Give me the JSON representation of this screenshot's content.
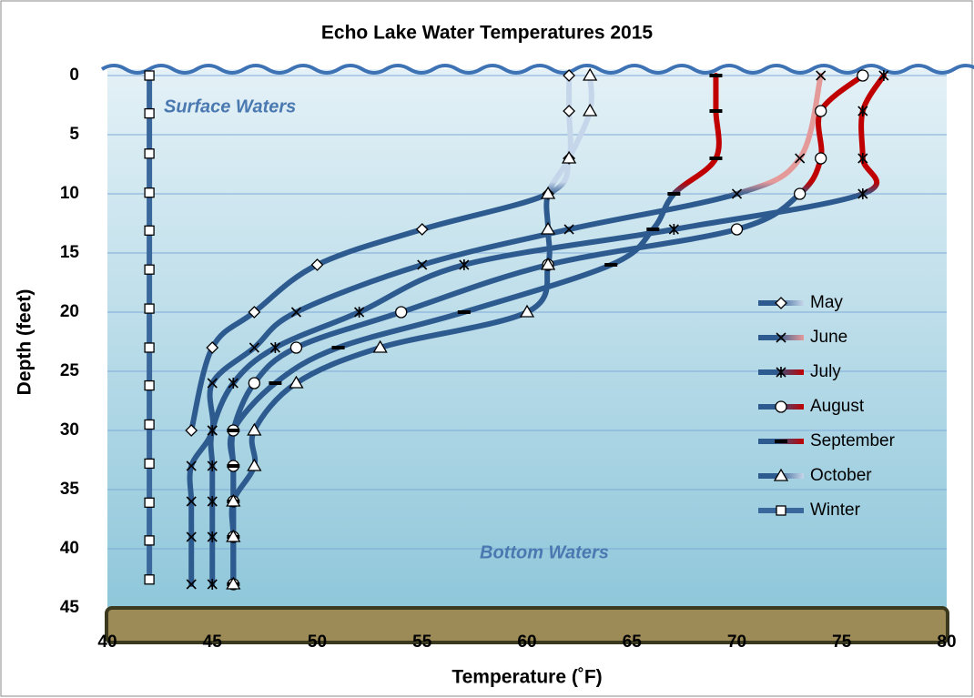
{
  "chart_data": {
    "type": "line",
    "title": "Echo Lake Water Temperatures 2015",
    "x_label": "Temperature  (˚F)",
    "y_label": "Depth (feet)",
    "annotations": [
      "Surface Waters",
      "Bottom Waters"
    ],
    "xlim": [
      40,
      80
    ],
    "xticks": [
      40,
      45,
      50,
      55,
      60,
      65,
      70,
      75,
      80
    ],
    "ylim": [
      0,
      45
    ],
    "yticks": [
      0,
      5,
      10,
      15,
      20,
      25,
      30,
      35,
      40,
      45
    ],
    "y_inverted": true,
    "grid": true,
    "series": [
      {
        "name": "May",
        "marker": "diamond",
        "colors": [
          "#2e5b8f",
          "#c6d6ea"
        ],
        "x": [
          62,
          62,
          62,
          61,
          55,
          50,
          47,
          45,
          44
        ],
        "values": [
          0,
          3,
          7,
          10,
          13,
          16,
          20,
          23,
          30
        ]
      },
      {
        "name": "June",
        "marker": "x",
        "colors": [
          "#2e5b8f",
          "#e59a9a"
        ],
        "x": [
          74,
          73,
          70,
          62,
          55,
          49,
          47,
          45,
          45,
          44,
          44,
          44,
          44
        ],
        "values": [
          0,
          7,
          10,
          13,
          16,
          20,
          23,
          26,
          30,
          33,
          36,
          39,
          43
        ]
      },
      {
        "name": "July",
        "marker": "asterisk",
        "colors": [
          "#2e5b8f",
          "#c00000"
        ],
        "x": [
          77,
          76,
          76,
          76,
          67,
          57,
          52,
          48,
          46,
          45,
          45,
          45,
          45,
          45
        ],
        "values": [
          0,
          3,
          7,
          10,
          13,
          16,
          20,
          23,
          26,
          30,
          33,
          36,
          39,
          43
        ]
      },
      {
        "name": "August",
        "marker": "circle",
        "colors": [
          "#2e5b8f",
          "#c00000"
        ],
        "x": [
          76,
          74,
          74,
          73,
          70,
          61,
          54,
          49,
          47,
          46,
          46,
          46,
          46,
          46
        ],
        "values": [
          0,
          3,
          7,
          10,
          13,
          16,
          20,
          23,
          26,
          30,
          33,
          36,
          39,
          43
        ]
      },
      {
        "name": "September",
        "marker": "dash",
        "colors": [
          "#2e5b8f",
          "#c00000"
        ],
        "x": [
          69,
          69,
          69,
          67,
          66,
          64,
          57,
          51,
          48,
          46,
          46,
          46,
          46,
          46
        ],
        "values": [
          0,
          3,
          7,
          10,
          13,
          16,
          20,
          23,
          26,
          30,
          33,
          36,
          39,
          43
        ]
      },
      {
        "name": "October",
        "marker": "triangle",
        "colors": [
          "#2e5b8f",
          "#c6d6ea"
        ],
        "x": [
          63,
          63,
          62,
          61,
          61,
          61,
          60,
          53,
          49,
          47,
          47,
          46,
          46,
          46
        ],
        "values": [
          0,
          3,
          7,
          10,
          13,
          16,
          20,
          23,
          26,
          30,
          33,
          36,
          39,
          43
        ]
      },
      {
        "name": "Winter",
        "marker": "square",
        "colors": [
          "#3a679c",
          "#3a679c"
        ],
        "x": [
          42,
          42,
          42,
          42,
          42,
          42,
          42,
          42,
          42,
          42,
          42,
          42,
          42,
          42
        ],
        "values": [
          0,
          3.2,
          6.6,
          9.9,
          13.1,
          16.4,
          19.7,
          23,
          26.2,
          29.5,
          32.8,
          36.1,
          39.3,
          42.6
        ]
      }
    ]
  }
}
